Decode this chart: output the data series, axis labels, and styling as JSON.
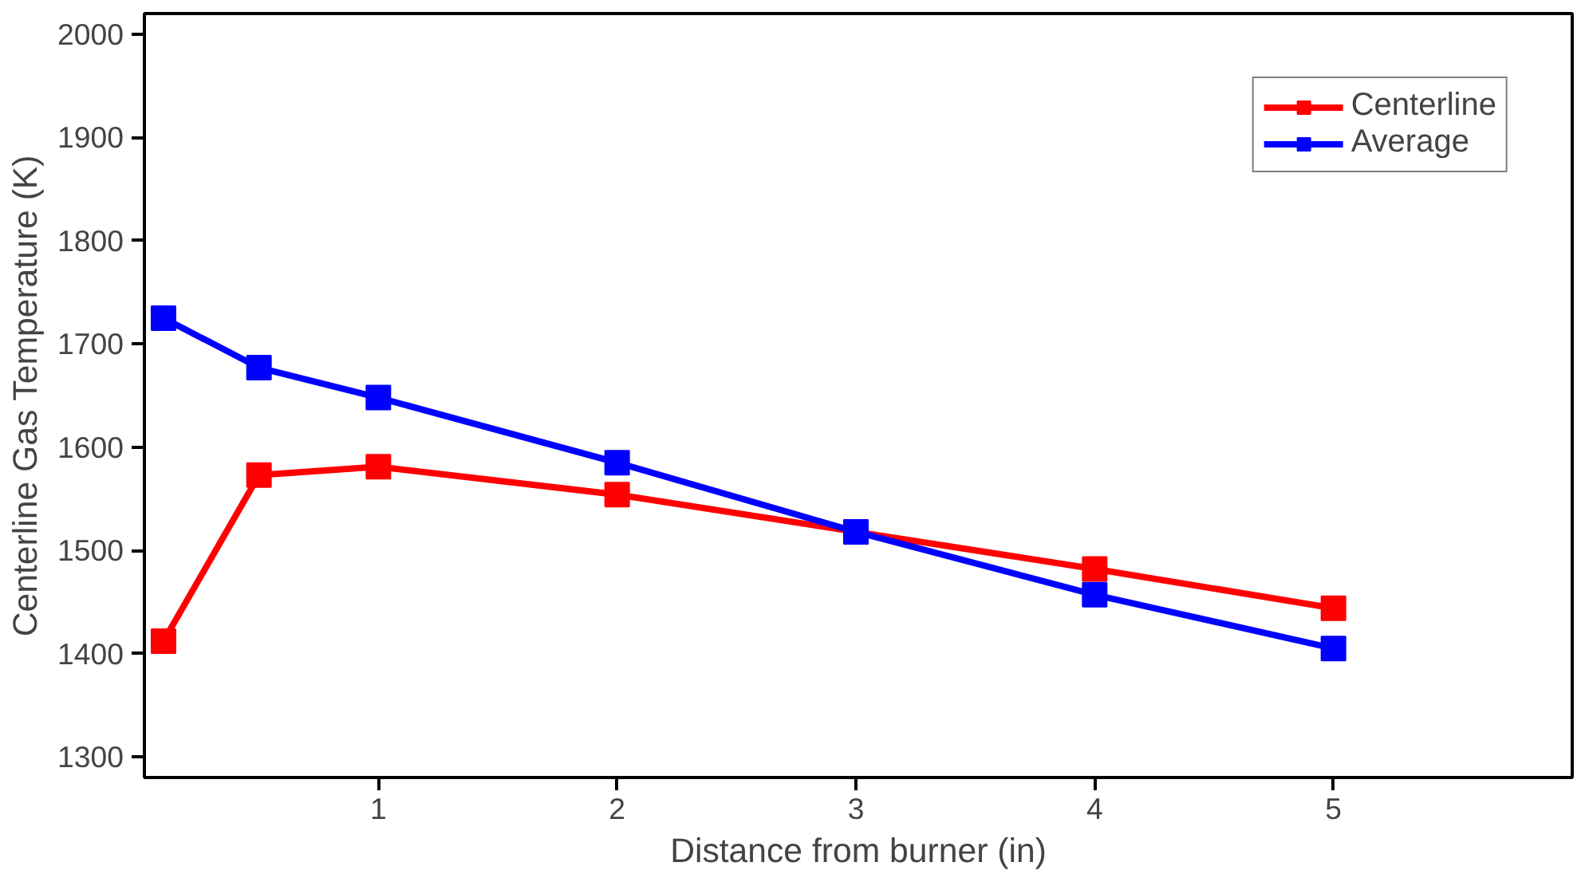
{
  "chart_data": {
    "type": "line",
    "xlabel": "Distance from burner (in)",
    "ylabel": "Centerline Gas Temperature (K)",
    "x": [
      0.1,
      0.5,
      1,
      2,
      3,
      4,
      5
    ],
    "series": [
      {
        "name": "Centerline",
        "color": "#ff0000",
        "values": [
          1412,
          1573,
          1581,
          1554,
          1518,
          1482,
          1444
        ]
      },
      {
        "name": "Average",
        "color": "#0000ff",
        "values": [
          1725,
          1677,
          1648,
          1585,
          1518,
          1457,
          1405
        ]
      }
    ],
    "xlim": [
      0.02,
      6
    ],
    "ylim": [
      1280,
      2020
    ],
    "xticks": [
      1,
      2,
      3,
      4,
      5
    ],
    "yticks": [
      1300,
      1400,
      1500,
      1600,
      1700,
      1800,
      1900,
      2000
    ],
    "grid": false,
    "legend": "top right",
    "marker": "square",
    "line_style": "solid"
  }
}
